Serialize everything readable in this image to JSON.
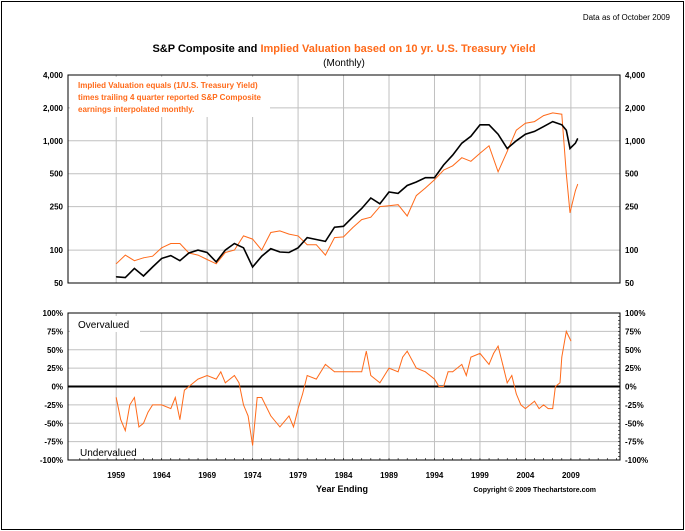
{
  "header": {
    "data_as_of": "Data as of October 2009",
    "title_black": "S&P Composite and ",
    "title_orange": "Implied Valuation based on 10 yr. U.S. Treasury Yield",
    "subtitle": "(Monthly)"
  },
  "footer": {
    "copyright": "Copyright © 2009 Thechartstore.com"
  },
  "colors": {
    "sp": "#000000",
    "implied": "#ff6a1a",
    "grid": "#c0c0c0"
  },
  "chart_data": [
    {
      "type": "line",
      "title": "S&P Composite and Implied Valuation based on 10 yr. U.S. Treasury Yield (Monthly)",
      "annotation": [
        "Implied Valuation equals (1/U.S. Treasury Yield)",
        "times trailing 4 quarter reported S&P Composite",
        "earnings interpolated monthly."
      ],
      "yscale": "log",
      "ylim": [
        50,
        4000
      ],
      "yticks": [
        50,
        100,
        250,
        500,
        1000,
        2000,
        4000
      ],
      "ytick_labels": [
        "50",
        "100",
        "250",
        "500",
        "1,000",
        "2,000",
        "4,000"
      ],
      "grid": true,
      "x": [
        1959,
        1960,
        1961,
        1962,
        1963,
        1964,
        1965,
        1966,
        1967,
        1968,
        1969,
        1970,
        1971,
        1972,
        1973,
        1974,
        1975,
        1976,
        1977,
        1978,
        1979,
        1980,
        1981,
        1982,
        1983,
        1984,
        1985,
        1986,
        1987,
        1988,
        1989,
        1990,
        1991,
        1992,
        1993,
        1994,
        1995,
        1996,
        1997,
        1998,
        1999,
        2000,
        2001,
        2002,
        2003,
        2004,
        2005,
        2006,
        2007,
        2008,
        2008.5,
        2008.9,
        2009.5,
        2009.75
      ],
      "series": [
        {
          "name": "S&P Composite",
          "color": "#000000",
          "values": [
            57,
            56,
            68,
            58,
            70,
            84,
            89,
            80,
            94,
            100,
            95,
            78,
            100,
            115,
            105,
            70,
            88,
            103,
            96,
            95,
            105,
            130,
            125,
            120,
            162,
            165,
            200,
            240,
            300,
            265,
            340,
            330,
            390,
            420,
            460,
            460,
            600,
            740,
            950,
            1100,
            1400,
            1400,
            1150,
            850,
            1000,
            1150,
            1220,
            1350,
            1500,
            1400,
            1250,
            850,
            950,
            1050
          ]
        },
        {
          "name": "Implied Valuation",
          "color": "#ff6a1a",
          "values": [
            75,
            90,
            80,
            85,
            88,
            105,
            115,
            115,
            94,
            90,
            82,
            75,
            95,
            100,
            135,
            126,
            100,
            145,
            150,
            140,
            135,
            112,
            112,
            90,
            130,
            132,
            160,
            190,
            200,
            250,
            255,
            260,
            205,
            315,
            370,
            440,
            540,
            590,
            700,
            650,
            770,
            900,
            520,
            800,
            1250,
            1450,
            1500,
            1700,
            1800,
            1750,
            500,
            220,
            350,
            400
          ]
        }
      ]
    },
    {
      "type": "line",
      "xlabel": "Year Ending",
      "labels": {
        "top": "Overvalued",
        "bottom": "Undervalued"
      },
      "ylim": [
        -100,
        100
      ],
      "yticks": [
        -100,
        -75,
        -50,
        -25,
        0,
        25,
        50,
        75,
        100
      ],
      "ytick_labels": [
        "-100%",
        "-75%",
        "-50%",
        "-25%",
        "0%",
        "25%",
        "50%",
        "75%",
        "100%"
      ],
      "xticks": [
        1959,
        1964,
        1969,
        1974,
        1979,
        1984,
        1989,
        1994,
        1999,
        2004,
        2009
      ],
      "xlim": [
        1953.7,
        2014.4
      ],
      "grid": true,
      "series": [
        {
          "color": "#ff6a1a",
          "x": [
            1959,
            1959.5,
            1960,
            1960.5,
            1961,
            1961.5,
            1962,
            1962.5,
            1963,
            1964,
            1965,
            1965.5,
            1966,
            1966.5,
            1967,
            1968,
            1969,
            1970,
            1970.5,
            1971,
            1972,
            1972.5,
            1973,
            1973.5,
            1974,
            1974.5,
            1975,
            1976,
            1977,
            1978,
            1978.5,
            1979,
            1979.5,
            1980,
            1981,
            1982,
            1983,
            1984,
            1985,
            1986,
            1986.5,
            1987,
            1988,
            1989,
            1990,
            1990.5,
            1991,
            1992,
            1993,
            1994,
            1994.5,
            1995,
            1995.5,
            1996,
            1997,
            1997.5,
            1998,
            1999,
            2000,
            2000.5,
            2001,
            2001.5,
            2002,
            2002.5,
            2003,
            2003.5,
            2004,
            2004.5,
            2005,
            2005.5,
            2006,
            2006.5,
            2007,
            2007.3,
            2007.8,
            2008,
            2008.5,
            2009
          ],
          "values": [
            -15,
            -45,
            -60,
            -25,
            -15,
            -55,
            -50,
            -35,
            -25,
            -25,
            -30,
            -15,
            -45,
            -5,
            0,
            10,
            15,
            10,
            20,
            5,
            15,
            5,
            -25,
            -40,
            -80,
            -15,
            -15,
            -40,
            -55,
            -40,
            -55,
            -30,
            -10,
            15,
            10,
            30,
            20,
            20,
            20,
            20,
            48,
            15,
            5,
            25,
            20,
            40,
            48,
            25,
            20,
            10,
            0,
            0,
            20,
            20,
            30,
            15,
            40,
            45,
            30,
            45,
            55,
            30,
            5,
            15,
            -10,
            -25,
            -30,
            -25,
            -20,
            -30,
            -25,
            -30,
            -30,
            0,
            5,
            40,
            75,
            62
          ]
        }
      ],
      "reference_line": 0
    }
  ]
}
